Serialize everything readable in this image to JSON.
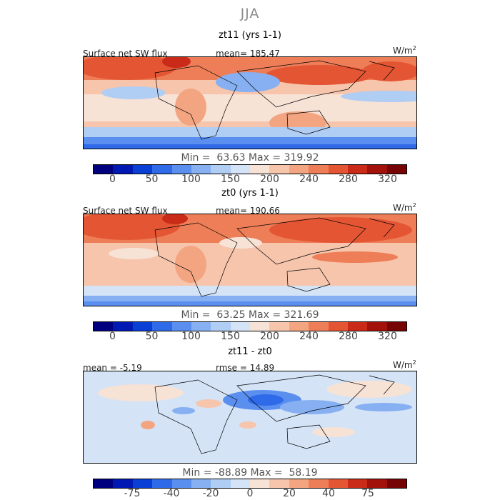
{
  "season": "JJA",
  "unit_base": "W/m",
  "unit_exp": "2",
  "panels": [
    {
      "title": "zt11 (yrs 1-1)",
      "field": "Surface net SW flux",
      "stat": "mean= 185.47",
      "minmax": "Min =  63.63 Max = 319.92",
      "ticks": [
        "0",
        "50",
        "100",
        "150",
        "200",
        "240",
        "280",
        "320"
      ],
      "colors": [
        "#00007f",
        "#0019b2",
        "#0a3fd6",
        "#2f6ae8",
        "#5a8ff0",
        "#86b0f2",
        "#b0cdf4",
        "#d4e3f6",
        "#f7e2d6",
        "#f6c5ac",
        "#f3a581",
        "#ee7e58",
        "#e45633",
        "#c92b18",
        "#a3110b",
        "#760404"
      ]
    },
    {
      "title": "zt0 (yrs 1-1)",
      "field": "Surface net SW flux",
      "stat": "mean= 190.66",
      "minmax": "Min =  63.25 Max = 321.69",
      "ticks": [
        "0",
        "50",
        "100",
        "150",
        "200",
        "240",
        "280",
        "320"
      ],
      "colors": [
        "#00007f",
        "#0019b2",
        "#0a3fd6",
        "#2f6ae8",
        "#5a8ff0",
        "#86b0f2",
        "#b0cdf4",
        "#d4e3f6",
        "#f7e2d6",
        "#f6c5ac",
        "#f3a581",
        "#ee7e58",
        "#e45633",
        "#c92b18",
        "#a3110b",
        "#760404"
      ]
    },
    {
      "title": "zt11 - zt0",
      "field": "mean =  -5.19",
      "stat": "rmse =  14.89",
      "minmax": "Min = -88.89 Max =  58.19",
      "ticks": [
        "-75",
        "-40",
        "-20",
        "0",
        "20",
        "40",
        "75"
      ],
      "colors": [
        "#00007f",
        "#0019b2",
        "#0a3fd6",
        "#2f6ae8",
        "#5a8ff0",
        "#86b0f2",
        "#b0cdf4",
        "#d4e3f6",
        "#f7e2d6",
        "#f6c5ac",
        "#f3a581",
        "#ee7e58",
        "#e45633",
        "#c92b18",
        "#a3110b",
        "#760404"
      ]
    }
  ]
}
